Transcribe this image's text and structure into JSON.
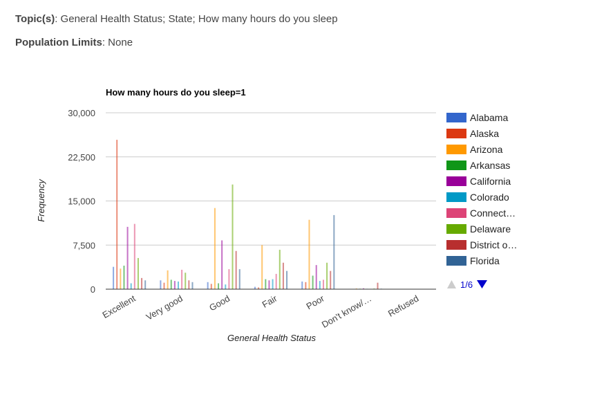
{
  "header": {
    "topics_label": "Topic(s)",
    "topics_value": ": General Health Status; State; How many hours do you sleep",
    "population_label": "Population Limits",
    "population_value": ": None"
  },
  "legend_pager": {
    "text": "1/6",
    "up_color": "#cccccc",
    "down_color": "#0000cc"
  },
  "chart_data": {
    "type": "bar",
    "title": "How many hours do you sleep=1",
    "xlabel": "General Health Status",
    "ylabel": "Frequency",
    "ylim": [
      0,
      30000
    ],
    "yticks": [
      0,
      7500,
      15000,
      22500,
      30000
    ],
    "ytick_labels": [
      "0",
      "7,500",
      "15,000",
      "22,500",
      "30,000"
    ],
    "grid": true,
    "legend_position": "right",
    "categories": [
      "Excellent",
      "Very good",
      "Good",
      "Fair",
      "Poor",
      "Don't know/…",
      "Refused"
    ],
    "series": [
      {
        "name": "Alabama",
        "color": "#3366cc",
        "values": [
          3800,
          1500,
          1200,
          400,
          1300,
          60,
          20
        ]
      },
      {
        "name": "Alaska",
        "color": "#dc3912",
        "values": [
          25400,
          1100,
          900,
          300,
          1200,
          50,
          15
        ]
      },
      {
        "name": "Arizona",
        "color": "#ff9900",
        "values": [
          3500,
          3200,
          13800,
          7500,
          11800,
          120,
          40
        ]
      },
      {
        "name": "Arkansas",
        "color": "#109618",
        "values": [
          4000,
          1600,
          1000,
          1700,
          2300,
          80,
          25
        ]
      },
      {
        "name": "California",
        "color": "#990099",
        "values": [
          10600,
          1400,
          8300,
          1500,
          4100,
          150,
          50
        ]
      },
      {
        "name": "Colorado",
        "color": "#0099c6",
        "values": [
          1000,
          1300,
          800,
          1700,
          1400,
          70,
          20
        ]
      },
      {
        "name": "Connect…",
        "color": "#dd4477",
        "values": [
          11100,
          3300,
          3400,
          2600,
          1600,
          60,
          20
        ]
      },
      {
        "name": "Delaware",
        "color": "#66aa00",
        "values": [
          5300,
          2800,
          17800,
          6700,
          4500,
          110,
          30
        ]
      },
      {
        "name": "District o…",
        "color": "#b82e2e",
        "values": [
          1900,
          1500,
          6500,
          4500,
          3100,
          1100,
          40
        ]
      },
      {
        "name": "Florida",
        "color": "#316395",
        "values": [
          1500,
          1200,
          3400,
          3100,
          12600,
          90,
          30
        ]
      }
    ]
  }
}
